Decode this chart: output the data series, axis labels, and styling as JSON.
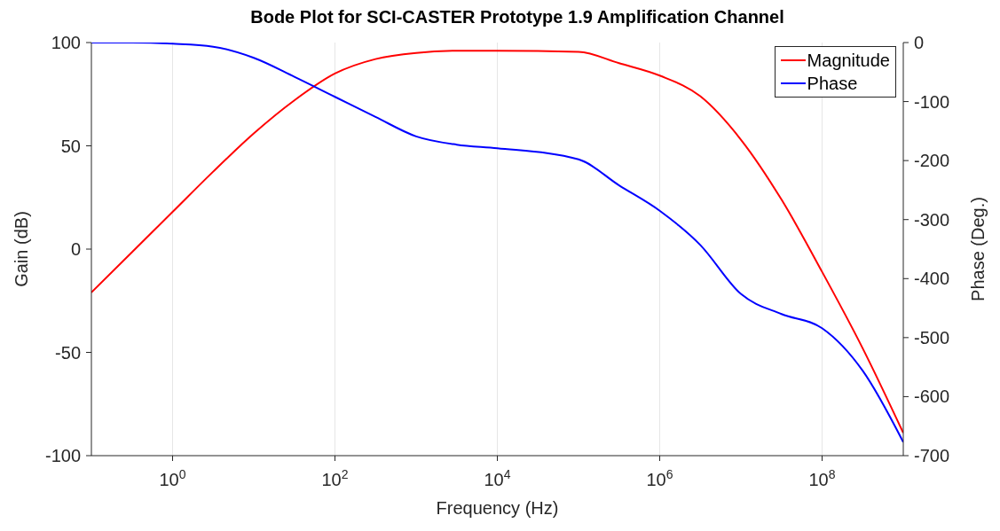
{
  "chart_data": {
    "type": "line",
    "title": "Bode Plot for SCI-CASTER Prototype 1.9 Amplification Channel",
    "xlabel": "Frequency (Hz)",
    "ylabel": "Gain (dB)",
    "y2label": "Phase (Deg.)",
    "x": [
      0.1,
      0.316,
      1,
      3.16,
      10,
      31.6,
      100,
      316,
      1000,
      3160,
      10000,
      100000,
      316000,
      1000000,
      3160000,
      10000000,
      31600000,
      100000000,
      316000000,
      1000000000
    ],
    "series": [
      {
        "name": "Magnitude",
        "color": "#ff0000",
        "values": [
          -21,
          -1.5,
          18,
          37.5,
          56,
          72,
          85,
          92,
          95,
          96,
          96,
          95.5,
          90,
          84,
          74,
          53,
          24,
          -11,
          -48,
          -89
        ]
      },
      {
        "name": "Phase",
        "color": "#0000ff",
        "axis": "y2",
        "values": [
          0,
          0,
          -2,
          -7,
          -26,
          -58,
          -92,
          -126,
          -159,
          -173,
          -179,
          -198,
          -242,
          -285,
          -343,
          -426,
          -460,
          -484,
          -556,
          -677
        ]
      }
    ],
    "log": "x",
    "xlim": [
      0.1,
      1000000000
    ],
    "xticks": [
      {
        "value": 1,
        "label": "10$^{0}$"
      },
      {
        "value": 100,
        "label": "10$^{2}$"
      },
      {
        "value": 10000,
        "label": "10$^{4}$"
      },
      {
        "value": 1000000,
        "label": "10$^{6}$"
      },
      {
        "value": 100000000,
        "label": "10$^{8}$"
      }
    ],
    "ylim": [
      -100,
      100
    ],
    "yticks": [
      -100,
      -50,
      0,
      50,
      100
    ],
    "y2lim": [
      -700,
      0
    ],
    "y2ticks": [
      -700,
      -600,
      -500,
      -400,
      -300,
      -200,
      -100,
      0
    ],
    "grid": true,
    "legend": "top right",
    "line_style": "solid",
    "marker": "none"
  }
}
